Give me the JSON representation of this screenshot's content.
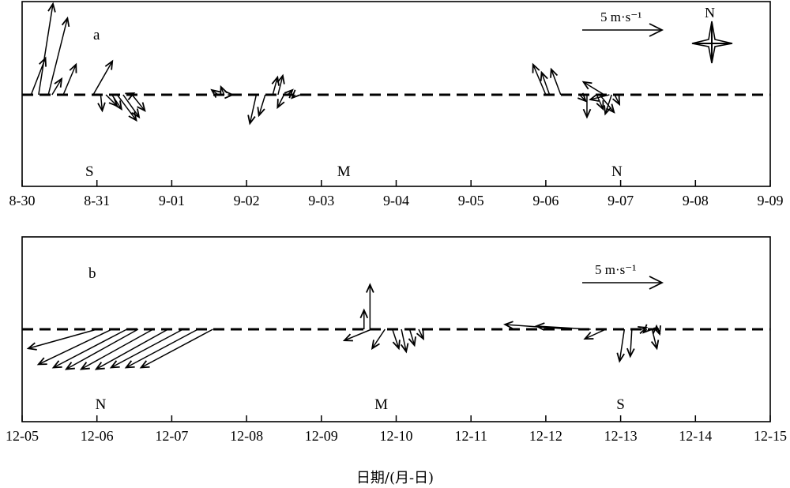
{
  "chart_data": [
    {
      "type": "vector-stick-plot",
      "panel_label": "a",
      "x_ticks": [
        "8-30",
        "8-31",
        "9-01",
        "9-02",
        "9-03",
        "9-04",
        "9-05",
        "9-06",
        "9-07",
        "9-08",
        "9-09"
      ],
      "xlim_days": [
        0,
        10
      ],
      "scale_label": "5 m·s⁻¹",
      "scale_value": 5,
      "compass_label": "N",
      "site_labels": [
        {
          "text": "S",
          "day": 0.9
        },
        {
          "text": "M",
          "day": 4.3
        },
        {
          "text": "N",
          "day": 7.95
        }
      ],
      "vectors": [
        {
          "day": 0.12,
          "u": 0.9,
          "v": 2.3
        },
        {
          "day": 0.22,
          "u": 0.9,
          "v": 5.7
        },
        {
          "day": 0.35,
          "u": 1.2,
          "v": 4.8
        },
        {
          "day": 0.4,
          "u": 0.6,
          "v": 1.0
        },
        {
          "day": 0.55,
          "u": 0.8,
          "v": 1.9
        },
        {
          "day": 0.95,
          "u": 1.2,
          "v": 2.1
        },
        {
          "day": 1.05,
          "u": 0.1,
          "v": -1.0
        },
        {
          "day": 1.12,
          "u": 0.7,
          "v": -0.7
        },
        {
          "day": 1.2,
          "u": 0.6,
          "v": -0.9
        },
        {
          "day": 1.27,
          "u": 1.2,
          "v": -1.6
        },
        {
          "day": 1.35,
          "u": 1.0,
          "v": -1.4
        },
        {
          "day": 1.45,
          "u": 0.2,
          "v": 0.1
        },
        {
          "day": 1.47,
          "u": 0.8,
          "v": -1.0
        },
        {
          "day": 2.62,
          "u": -0.4,
          "v": 0.3
        },
        {
          "day": 2.7,
          "u": -0.2,
          "v": 0.5
        },
        {
          "day": 2.75,
          "u": 0.3,
          "v": 0.0
        },
        {
          "day": 3.13,
          "u": -0.4,
          "v": -1.8
        },
        {
          "day": 3.25,
          "u": -0.4,
          "v": -1.3
        },
        {
          "day": 3.35,
          "u": 0.3,
          "v": 1.1
        },
        {
          "day": 3.42,
          "u": 0.3,
          "v": 1.2
        },
        {
          "day": 3.5,
          "u": -0.4,
          "v": -0.8
        },
        {
          "day": 3.55,
          "u": 0.3,
          "v": 0.3
        },
        {
          "day": 3.65,
          "u": -0.2,
          "v": -0.2
        },
        {
          "day": 7.0,
          "u": -0.8,
          "v": 1.9
        },
        {
          "day": 7.05,
          "u": -0.5,
          "v": 1.4
        },
        {
          "day": 7.2,
          "u": -0.6,
          "v": 1.6
        },
        {
          "day": 7.45,
          "u": 0.4,
          "v": -0.4
        },
        {
          "day": 7.55,
          "u": 0.0,
          "v": -1.4
        },
        {
          "day": 7.68,
          "u": 0.4,
          "v": -0.9
        },
        {
          "day": 7.72,
          "u": 0.9,
          "v": -1.1
        },
        {
          "day": 7.78,
          "u": -1.3,
          "v": 0.8
        },
        {
          "day": 7.85,
          "u": -1.2,
          "v": -0.3
        },
        {
          "day": 7.88,
          "u": -0.4,
          "v": -1.2
        },
        {
          "day": 7.92,
          "u": 0.3,
          "v": -0.6
        }
      ]
    },
    {
      "type": "vector-stick-plot",
      "panel_label": "b",
      "x_ticks": [
        "12-05",
        "12-06",
        "12-07",
        "12-08",
        "12-09",
        "12-10",
        "12-11",
        "12-12",
        "12-13",
        "12-14",
        "12-15"
      ],
      "xlim_days": [
        0,
        10
      ],
      "scale_label": "5 m·s⁻¹",
      "scale_value": 5,
      "site_labels": [
        {
          "text": "N",
          "day": 1.05
        },
        {
          "text": "M",
          "day": 4.8
        },
        {
          "text": "S",
          "day": 8.0
        }
      ],
      "vectors": [
        {
          "day": 1.0,
          "u": -4.3,
          "v": -1.2
        },
        {
          "day": 1.2,
          "u": -4.6,
          "v": -2.2
        },
        {
          "day": 1.4,
          "u": -4.6,
          "v": -2.4
        },
        {
          "day": 1.55,
          "u": -4.5,
          "v": -2.5
        },
        {
          "day": 1.75,
          "u": -4.5,
          "v": -2.5
        },
        {
          "day": 1.95,
          "u": -4.5,
          "v": -2.5
        },
        {
          "day": 2.15,
          "u": -4.5,
          "v": -2.4
        },
        {
          "day": 2.35,
          "u": -4.5,
          "v": -2.4
        },
        {
          "day": 2.55,
          "u": -4.5,
          "v": -2.4
        },
        {
          "day": 4.57,
          "u": 0.0,
          "v": 1.2
        },
        {
          "day": 4.65,
          "u": 0.0,
          "v": 2.8
        },
        {
          "day": 4.67,
          "u": -1.7,
          "v": -0.7
        },
        {
          "day": 4.85,
          "u": -0.8,
          "v": -1.2
        },
        {
          "day": 4.95,
          "u": 0.4,
          "v": -1.2
        },
        {
          "day": 5.07,
          "u": 0.3,
          "v": -1.4
        },
        {
          "day": 5.18,
          "u": 0.3,
          "v": -1.0
        },
        {
          "day": 5.3,
          "u": 0.3,
          "v": -0.6
        },
        {
          "day": 7.35,
          "u": -4.2,
          "v": 0.3
        },
        {
          "day": 7.6,
          "u": -3.4,
          "v": 0.2
        },
        {
          "day": 7.8,
          "u": -1.3,
          "v": -0.6
        },
        {
          "day": 8.05,
          "u": -0.3,
          "v": -2.0
        },
        {
          "day": 8.15,
          "u": -0.1,
          "v": -1.7
        },
        {
          "day": 8.28,
          "u": 0.3,
          "v": 0.1
        },
        {
          "day": 8.35,
          "u": -0.2,
          "v": -0.2
        },
        {
          "day": 8.42,
          "u": 0.3,
          "v": -1.2
        },
        {
          "day": 8.48,
          "u": 0.0,
          "v": 0.2
        },
        {
          "day": 8.5,
          "u": 0.1,
          "v": -0.3
        }
      ]
    }
  ],
  "x_axis_title": "日期/(月-日)"
}
